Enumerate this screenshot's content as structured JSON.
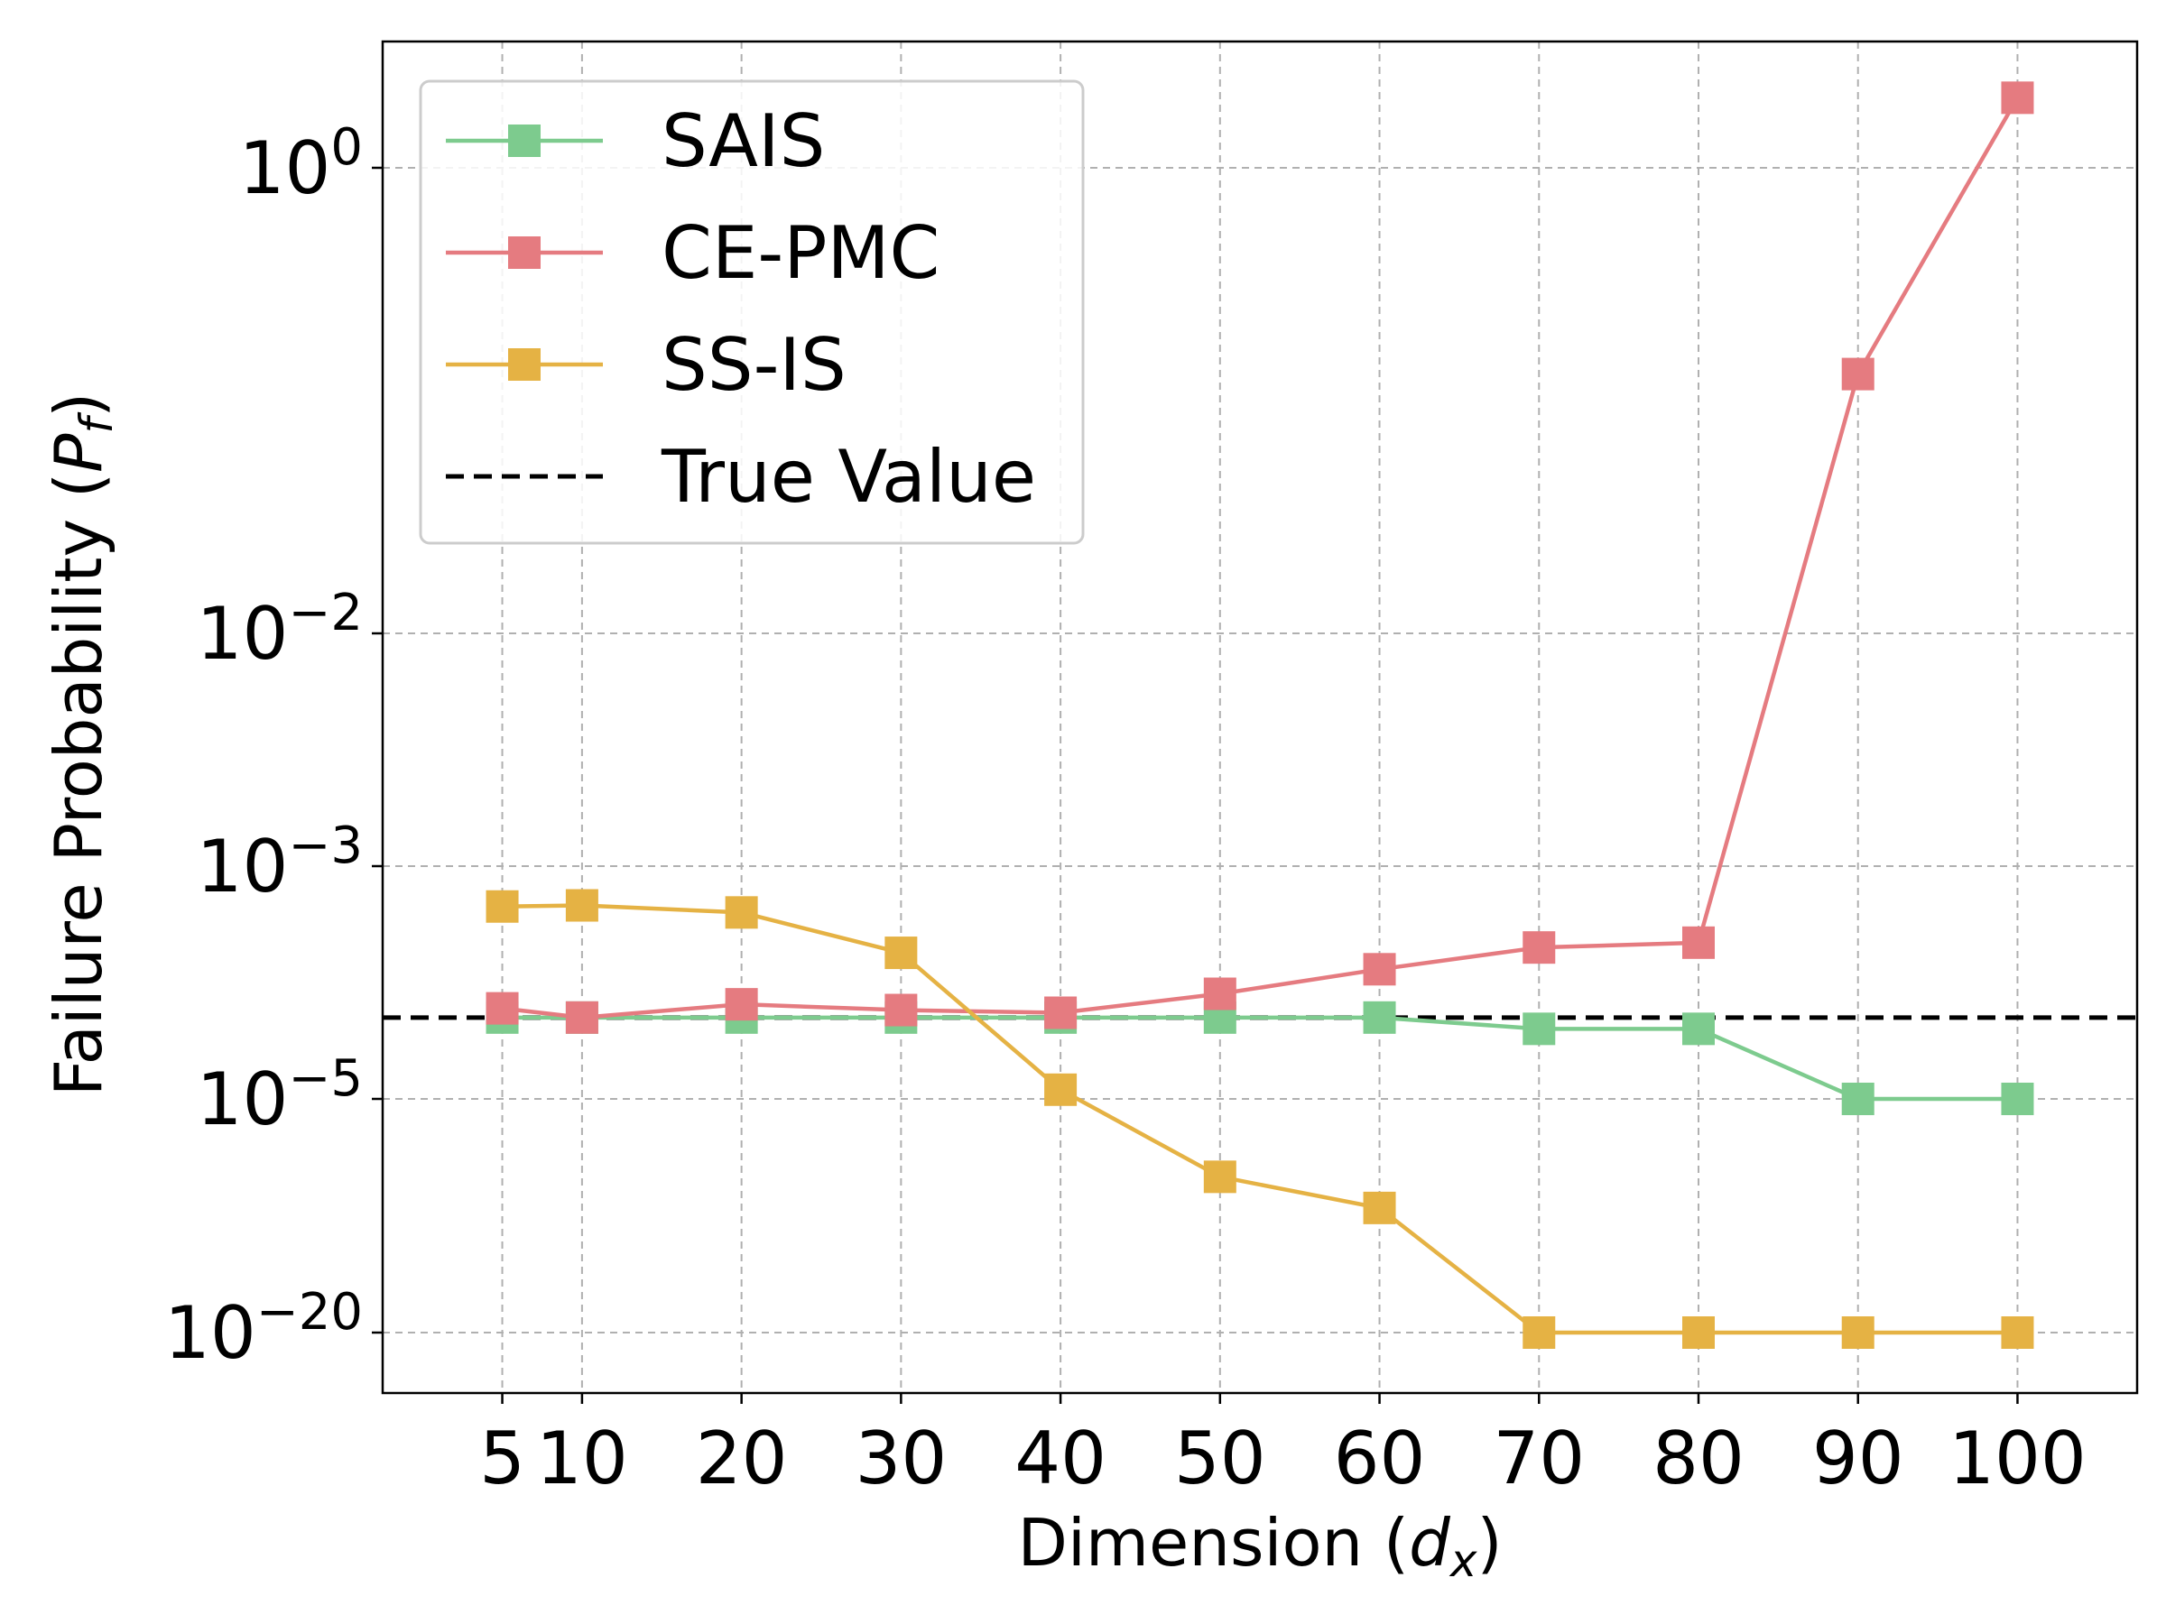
{
  "chart_data": {
    "type": "line",
    "title": "",
    "xlabel": "Dimension",
    "xlabel_symbol": "d",
    "xlabel_sub": "x",
    "ylabel": "Failure Probability",
    "ylabel_symbol": "P",
    "ylabel_sub": "f",
    "y_scale": "log (broken)",
    "x": [
      5,
      10,
      20,
      30,
      40,
      50,
      60,
      70,
      80,
      90,
      100
    ],
    "x_tick_labels": [
      "5",
      "10",
      "20",
      "30",
      "40",
      "50",
      "60",
      "70",
      "80",
      "90",
      "100"
    ],
    "y_ticks": [
      {
        "label_base": "10",
        "label_exp": "0",
        "value": 1
      },
      {
        "label_base": "10",
        "label_exp": "−2",
        "value": 0.01
      },
      {
        "label_base": "10",
        "label_exp": "−3",
        "value": 0.001
      },
      {
        "label_base": "10",
        "label_exp": "−5",
        "value": 1e-05
      },
      {
        "label_base": "10",
        "label_exp": "−20",
        "value": 1e-20
      }
    ],
    "grid": true,
    "legend_position": "top-left",
    "series": [
      {
        "name": "SAIS",
        "color": "#7dcb8e",
        "marker": "square",
        "values": [
          5e-05,
          5e-05,
          5e-05,
          5e-05,
          5e-05,
          5e-05,
          5e-05,
          4e-05,
          4e-05,
          1e-05,
          1e-05
        ]
      },
      {
        "name": "CE-PMC",
        "color": "#e57b80",
        "marker": "square",
        "values": [
          6e-05,
          5e-05,
          6.5e-05,
          5.8e-05,
          5.5e-05,
          8e-05,
          0.00013,
          0.0002,
          0.00022,
          0.13,
          2
        ]
      },
      {
        "name": "SS-IS",
        "color": "#e5b244",
        "marker": "square",
        "values": [
          0.00045,
          0.00046,
          0.0004,
          0.00018,
          1.2e-05,
          1e-10,
          1e-12,
          1e-20,
          1e-20,
          1e-20,
          1e-20
        ]
      }
    ],
    "reference_line": {
      "name": "True Value",
      "value": 5e-05,
      "color": "#000000",
      "style": "dashed"
    }
  }
}
